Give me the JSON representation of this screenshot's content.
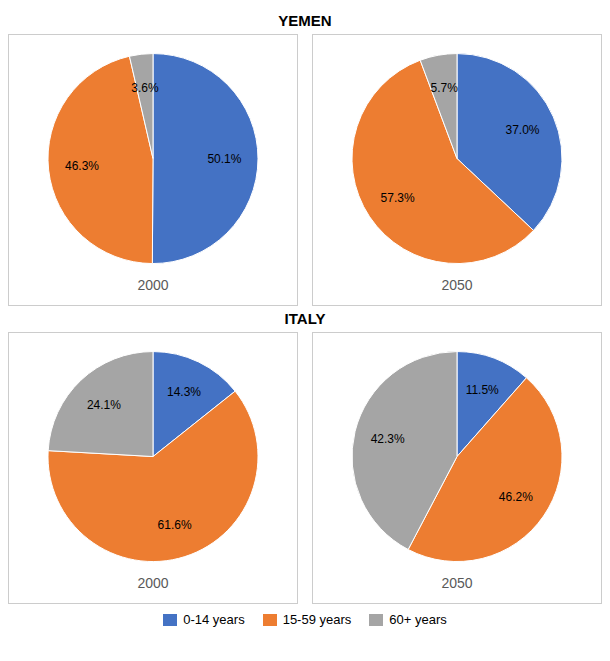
{
  "chart_data": [
    {
      "type": "pie",
      "title": "YEMEN",
      "subtitle": "2000",
      "categories": [
        "0-14 years",
        "15-59 years",
        "60+ years"
      ],
      "values": [
        50.1,
        46.3,
        3.6
      ],
      "value_labels": [
        "50.1%",
        "46.3%",
        "3.6%"
      ],
      "colors": [
        "#4472C4",
        "#ED7D31",
        "#A5A5A5"
      ],
      "data_labels": true,
      "legend": "bottom"
    },
    {
      "type": "pie",
      "title": "YEMEN",
      "subtitle": "2050",
      "categories": [
        "0-14 years",
        "15-59 years",
        "60+ years"
      ],
      "values": [
        37.0,
        57.3,
        5.7
      ],
      "value_labels": [
        "37.0%",
        "57.3%",
        "5.7%"
      ],
      "colors": [
        "#4472C4",
        "#ED7D31",
        "#A5A5A5"
      ],
      "data_labels": true,
      "legend": "bottom"
    },
    {
      "type": "pie",
      "title": "ITALY",
      "subtitle": "2000",
      "categories": [
        "0-14 years",
        "15-59 years",
        "60+ years"
      ],
      "values": [
        14.3,
        61.6,
        24.1
      ],
      "value_labels": [
        "14.3%",
        "61.6%",
        "24.1%"
      ],
      "colors": [
        "#4472C4",
        "#ED7D31",
        "#A5A5A5"
      ],
      "data_labels": true,
      "legend": "bottom"
    },
    {
      "type": "pie",
      "title": "ITALY",
      "subtitle": "2050",
      "categories": [
        "0-14 years",
        "15-59 years",
        "60+ years"
      ],
      "values": [
        11.5,
        46.2,
        42.3
      ],
      "value_labels": [
        "11.5%",
        "46.2%",
        "42.3%"
      ],
      "colors": [
        "#4472C4",
        "#ED7D31",
        "#A5A5A5"
      ],
      "data_labels": true,
      "legend": "bottom"
    }
  ]
}
